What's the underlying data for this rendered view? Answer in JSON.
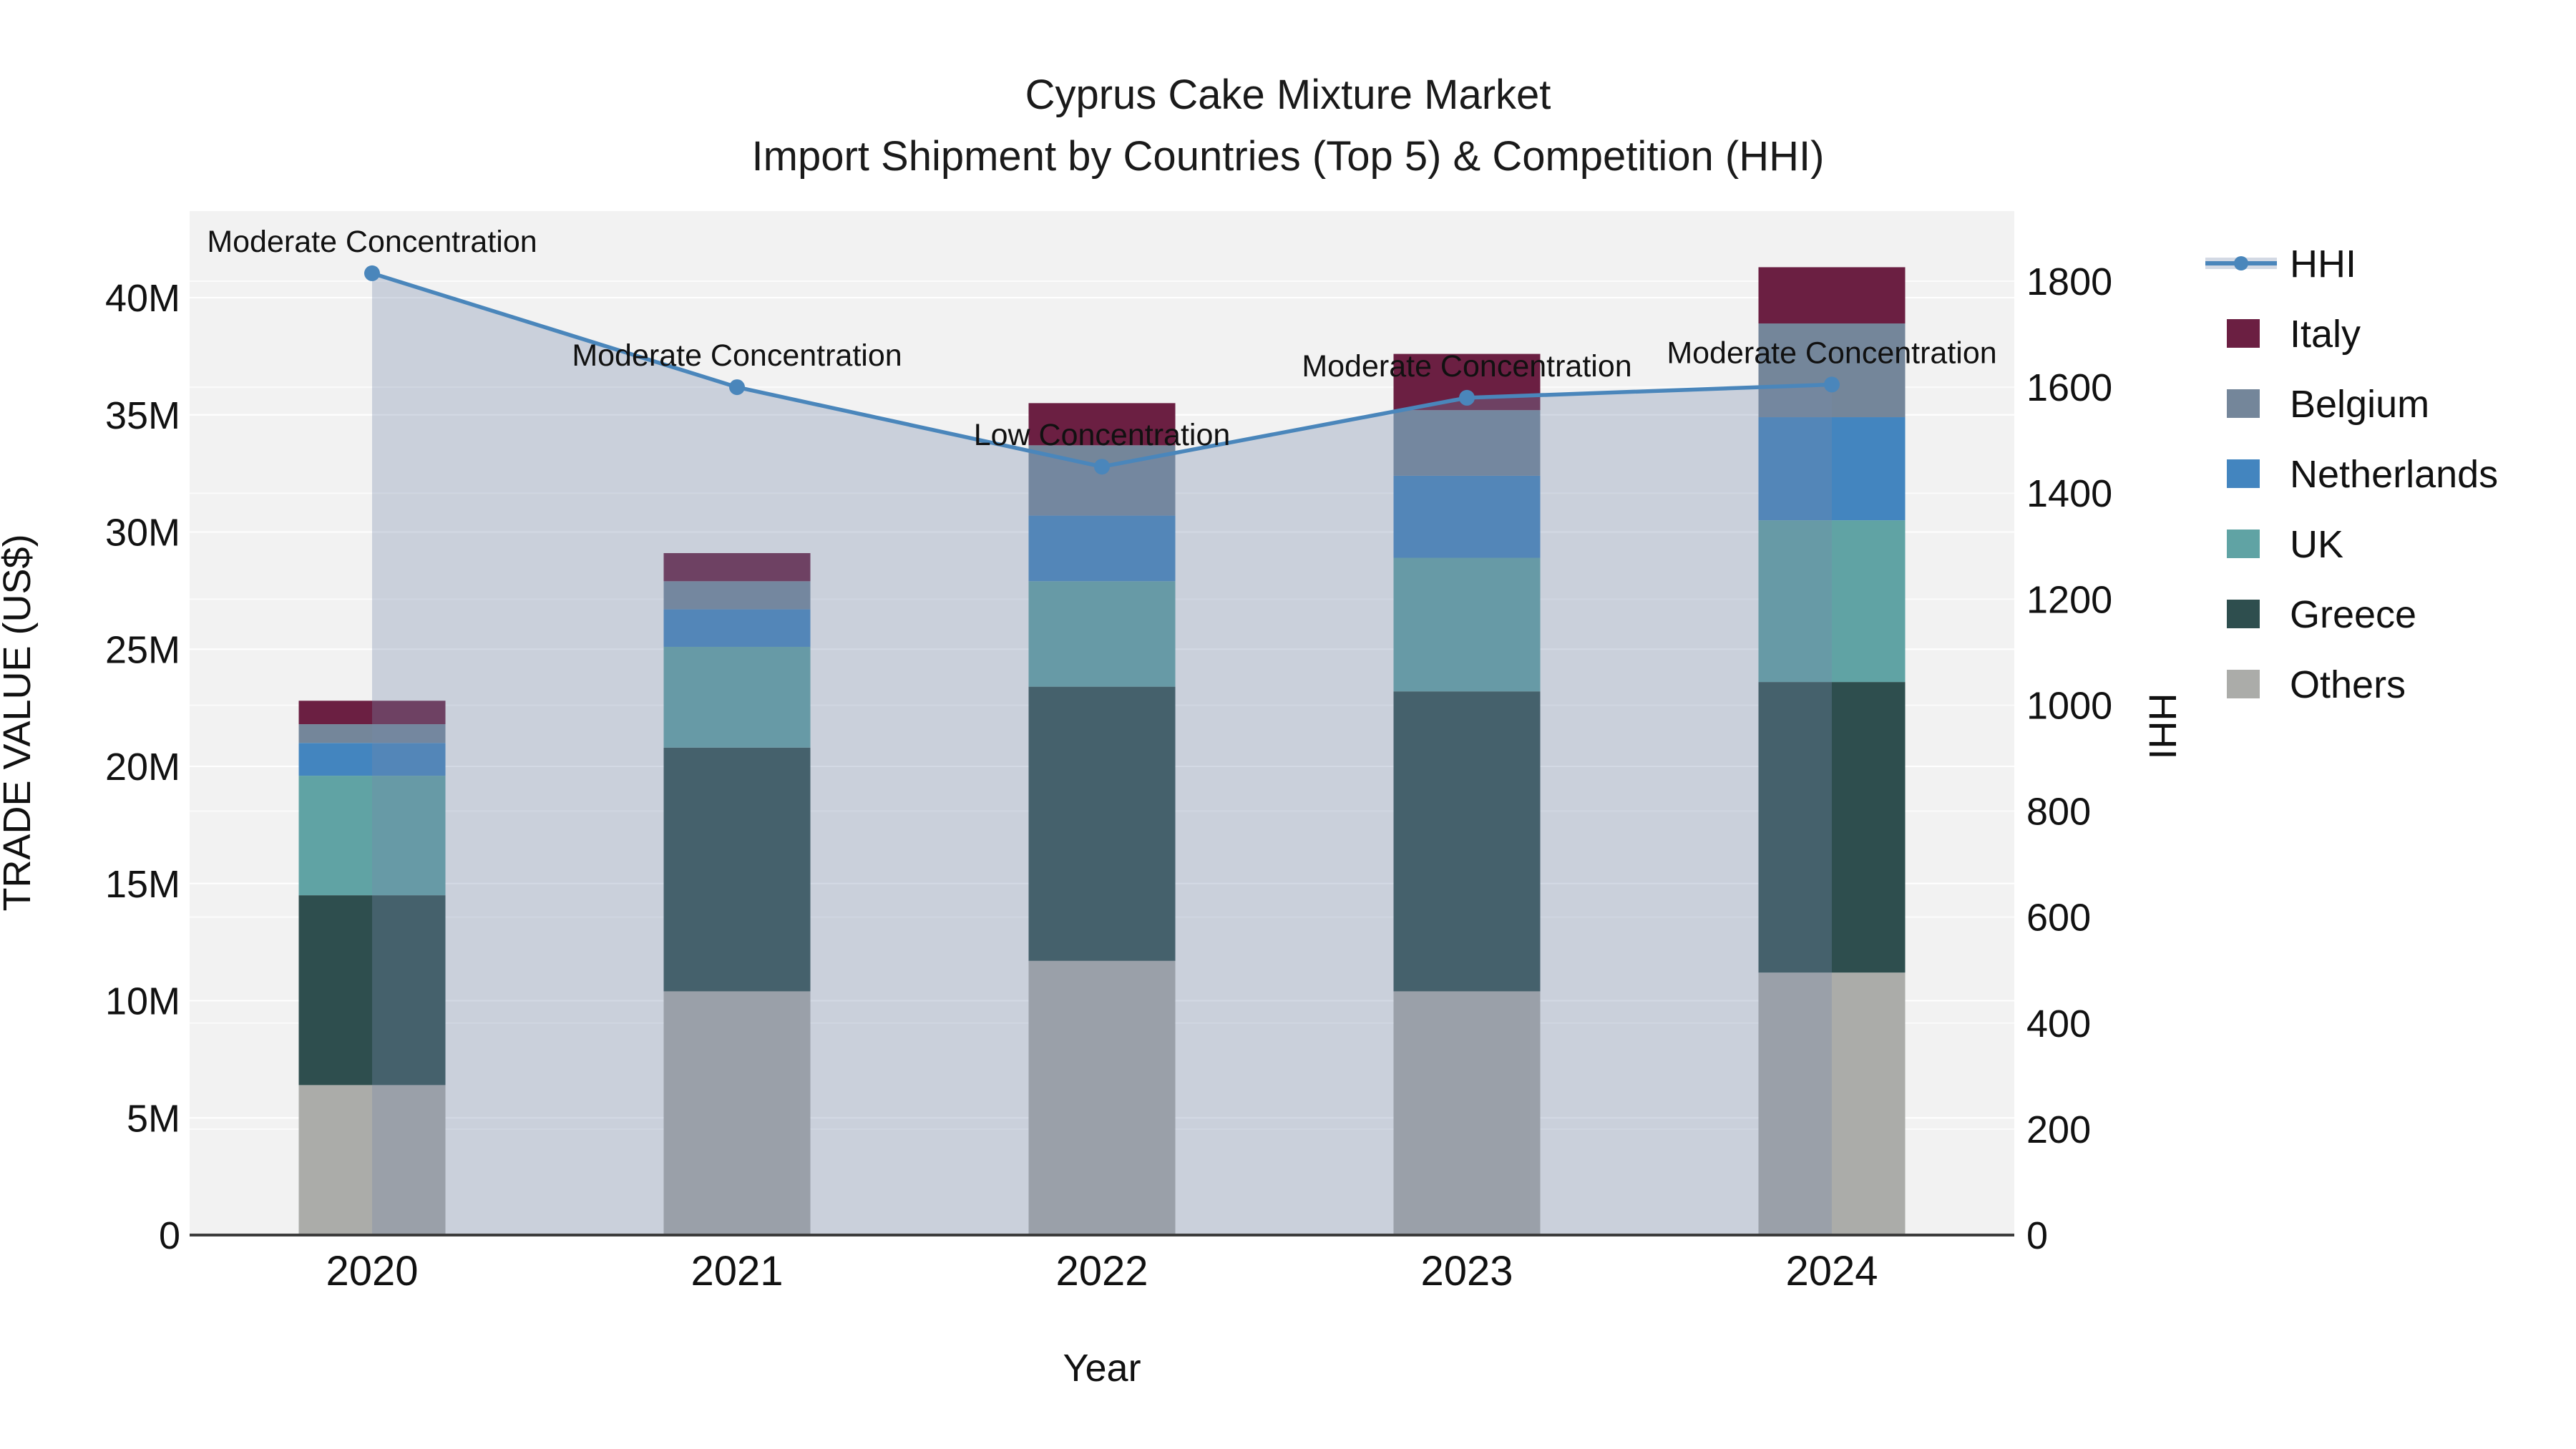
{
  "title": {
    "line1": "Cyprus Cake Mixture Market",
    "line2": "Import Shipment by Countries (Top 5) & Competition (HHI)"
  },
  "chart_data": {
    "type": "bar",
    "subtype": "stacked bars with HHI line overlay and area fill",
    "categories": [
      "2020",
      "2021",
      "2022",
      "2023",
      "2024"
    ],
    "value_unit": "millions US$",
    "series": [
      {
        "name": "Others",
        "color": "#abaca9",
        "values": [
          6.4,
          10.4,
          11.7,
          10.4,
          11.2
        ]
      },
      {
        "name": "Greece",
        "color": "#2e4e4e",
        "values": [
          8.1,
          10.4,
          11.7,
          12.8,
          12.4
        ]
      },
      {
        "name": "UK",
        "color": "#60a3a4",
        "values": [
          5.1,
          4.3,
          4.5,
          5.7,
          6.9
        ]
      },
      {
        "name": "Netherlands",
        "color": "#4385bf",
        "values": [
          1.4,
          1.6,
          2.8,
          3.5,
          4.4
        ]
      },
      {
        "name": "Belgium",
        "color": "#74869a",
        "values": [
          0.8,
          1.2,
          3.0,
          2.8,
          4.0
        ]
      },
      {
        "name": "Italy",
        "color": "#6b1f42",
        "values": [
          1.0,
          1.2,
          1.8,
          2.4,
          2.4
        ]
      }
    ],
    "hhi": {
      "name": "HHI",
      "values": [
        1815,
        1600,
        1450,
        1580,
        1605
      ],
      "line_color": "#4a86bb",
      "area_color": "#7788aa",
      "area_opacity": 0.32
    },
    "annotations": [
      "Moderate Concentration",
      "Moderate Concentration",
      "Low Concentration",
      "Moderate Concentration",
      "Moderate Concentration"
    ],
    "left_axis": {
      "title": "TRADE VALUE (US$)",
      "tick_labels": [
        "0",
        "5M",
        "10M",
        "15M",
        "20M",
        "25M",
        "30M",
        "35M",
        "40M"
      ],
      "tick_values_millions": [
        0,
        5,
        10,
        15,
        20,
        25,
        30,
        35,
        40
      ],
      "range_millions": [
        0,
        43.7
      ]
    },
    "right_axis": {
      "title": "HHI",
      "tick_labels": [
        "0",
        "200",
        "400",
        "600",
        "800",
        "1000",
        "1200",
        "1400",
        "1600",
        "1800"
      ],
      "tick_values": [
        0,
        200,
        400,
        600,
        800,
        1000,
        1200,
        1400,
        1600,
        1800
      ],
      "range": [
        0,
        1800
      ]
    },
    "x_axis": {
      "title": "Year"
    },
    "legend_order": [
      "HHI",
      "Italy",
      "Belgium",
      "Netherlands",
      "UK",
      "Greece",
      "Others"
    ],
    "grid": true,
    "legend_position": "right"
  },
  "colors": {
    "plot_bg": "#f2f2f2",
    "grid": "#ffffff",
    "axis_line": "#3c3c3c",
    "text": "#111111"
  }
}
